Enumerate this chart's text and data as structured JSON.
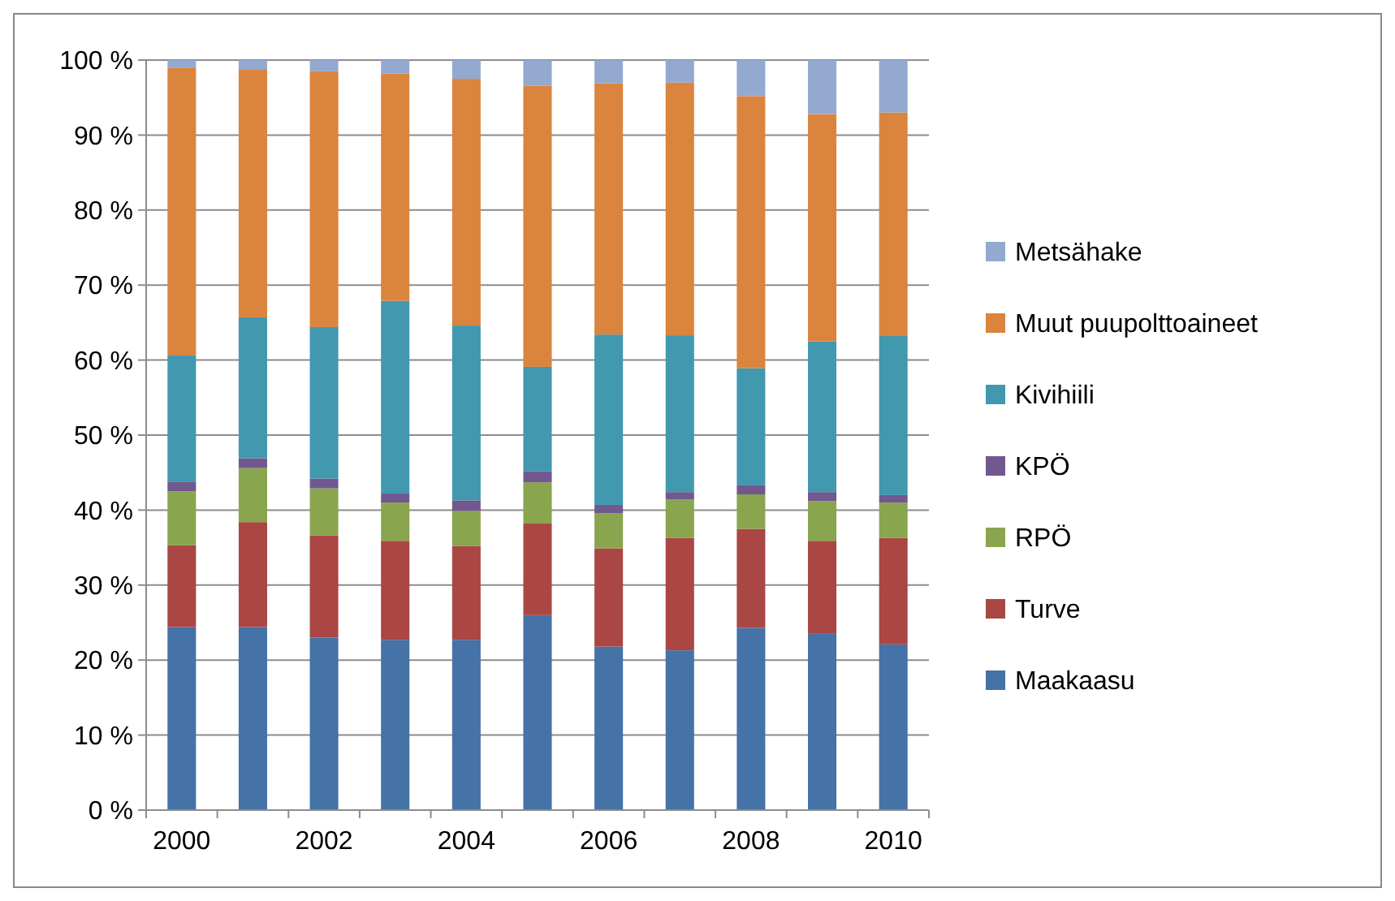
{
  "chart_data": {
    "type": "bar",
    "stacked": true,
    "categories": [
      "2000",
      null,
      "2002",
      null,
      "2004",
      null,
      "2006",
      null,
      "2008",
      null,
      "2010"
    ],
    "ylim": [
      0,
      100
    ],
    "yticks": [
      {
        "value": 0,
        "label": "0 %"
      },
      {
        "value": 10,
        "label": "10 %"
      },
      {
        "value": 20,
        "label": "20 %"
      },
      {
        "value": 30,
        "label": "30 %"
      },
      {
        "value": 40,
        "label": "40 %"
      },
      {
        "value": 50,
        "label": "50 %"
      },
      {
        "value": 60,
        "label": "60 %"
      },
      {
        "value": 70,
        "label": "70 %"
      },
      {
        "value": 80,
        "label": "80 %"
      },
      {
        "value": 90,
        "label": "90 %"
      },
      {
        "value": 100,
        "label": "100 %"
      }
    ],
    "grid": "y",
    "legend": "right",
    "series": [
      {
        "name": "Maakaasu",
        "color": "#4572a7",
        "values": [
          24.4,
          24.4,
          23.0,
          22.7,
          22.7,
          26.0,
          21.8,
          21.3,
          24.3,
          23.5,
          22.1
        ]
      },
      {
        "name": "Turve",
        "color": "#aa4643",
        "values": [
          10.9,
          14.0,
          13.6,
          13.2,
          12.5,
          12.2,
          13.1,
          15.0,
          13.2,
          12.4,
          14.2
        ]
      },
      {
        "name": "RPÖ",
        "color": "#89a54e",
        "values": [
          7.2,
          7.2,
          6.3,
          5.1,
          4.7,
          5.5,
          4.7,
          5.1,
          4.6,
          5.3,
          4.7
        ]
      },
      {
        "name": "KPÖ",
        "color": "#71588f",
        "values": [
          1.3,
          1.3,
          1.3,
          1.2,
          1.4,
          1.5,
          1.1,
          1.0,
          1.2,
          1.2,
          1.0
        ]
      },
      {
        "name": "Kivihiili",
        "color": "#4198af",
        "values": [
          16.8,
          18.8,
          20.2,
          25.7,
          23.3,
          13.9,
          22.7,
          20.9,
          15.6,
          20.1,
          21.2
        ]
      },
      {
        "name": "Muut puupolttoaineet",
        "color": "#db843d",
        "values": [
          38.4,
          33.0,
          34.1,
          30.3,
          32.9,
          37.5,
          33.5,
          33.7,
          36.3,
          30.3,
          29.8
        ]
      },
      {
        "name": "Metsähake",
        "color": "#93a9cf",
        "values": [
          1.0,
          1.3,
          1.5,
          1.8,
          2.5,
          3.4,
          3.1,
          3.0,
          4.8,
          7.2,
          7.0
        ]
      }
    ]
  }
}
